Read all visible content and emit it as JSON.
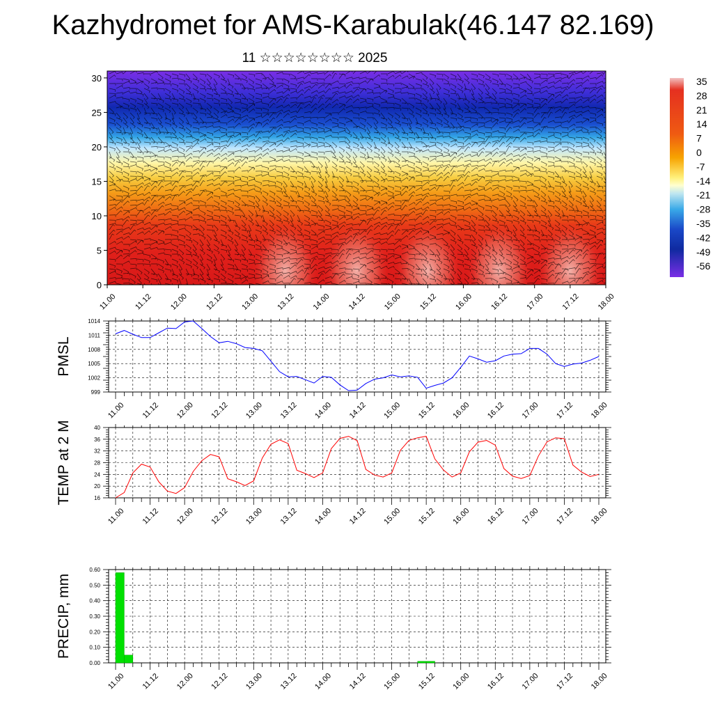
{
  "page": {
    "title": "Kazhydromet for AMS-Karabulak(46.147 82.169)",
    "subtitle": "11 ☆☆☆☆☆☆☆☆ 2025"
  },
  "time_labels": [
    "11.00",
    "11.12",
    "12.00",
    "12.12",
    "13.00",
    "13.12",
    "14.00",
    "14.12",
    "15.00",
    "15.12",
    "16.00",
    "16.12",
    "17.00",
    "17.12",
    "18.00"
  ],
  "colorbar": {
    "labels": [
      "35",
      "28",
      "21",
      "14",
      "7",
      "0",
      "-7",
      "-14",
      "-21",
      "-28",
      "-35",
      "-42",
      "-49",
      "-56"
    ],
    "colors": [
      "#f2b8b8",
      "#e53020",
      "#f7a300",
      "#fff07a",
      "#bfe6f0",
      "#39a9e8",
      "#0f2aa0",
      "#7a2ee6"
    ]
  },
  "chart_data": [
    {
      "type": "heatmap",
      "title": "",
      "description_none": "",
      "x_ticks": [
        "11.00",
        "11.12",
        "12.00",
        "12.12",
        "13.00",
        "13.12",
        "14.00",
        "14.12",
        "15.00",
        "15.12",
        "16.00",
        "16.12",
        "17.00",
        "17.12",
        "18.00"
      ],
      "y_ticks": [
        0,
        5,
        10,
        15,
        20,
        25,
        30
      ],
      "ylim": [
        0,
        31
      ],
      "value_range": [
        -56,
        35
      ],
      "warm_maxima_at_days": [
        13.5,
        14.5,
        15.5,
        16.5,
        17.5
      ],
      "grid": false,
      "legend": "right colorbar"
    },
    {
      "type": "line",
      "ylabel": "PMSL",
      "ylim": [
        999,
        1014
      ],
      "y_ticks": [
        999,
        1002,
        1005,
        1008,
        1011,
        1014
      ],
      "x_ticks": [
        "11.00",
        "11.12",
        "12.00",
        "12.12",
        "13.00",
        "13.12",
        "14.00",
        "14.12",
        "15.00",
        "15.12",
        "16.00",
        "16.12",
        "17.00",
        "17.12",
        "18.00"
      ],
      "x_hours": [
        0,
        3,
        6,
        9,
        12,
        15,
        18,
        21,
        24,
        27,
        30,
        33,
        36,
        39,
        42,
        45,
        48,
        51,
        54,
        57,
        60,
        63,
        66,
        69,
        72,
        75,
        78,
        81,
        84,
        87,
        90,
        93,
        96,
        99,
        102,
        105,
        108,
        111,
        114,
        117,
        120,
        123,
        126,
        129,
        132,
        135,
        138,
        141,
        144,
        147,
        150,
        153,
        156,
        159,
        162,
        165,
        168
      ],
      "series": [
        {
          "color": "#0000ff",
          "values": [
            1011.3,
            1012,
            1011.2,
            1010.5,
            1010.5,
            1011.5,
            1012.5,
            1012.4,
            1013.8,
            1014,
            1012.4,
            1010.7,
            1009.4,
            1009.7,
            1009.2,
            1008.4,
            1008.2,
            1007.7,
            1005.5,
            1003.3,
            1002.2,
            1002.3,
            1001.6,
            1000.9,
            1002.3,
            1002.1,
            1000.5,
            999.3,
            999.4,
            1000.8,
            1001.7,
            1002,
            1002.6,
            1002.2,
            1002.4,
            1002.1,
            999.8,
            1000.4,
            1000.9,
            1002,
            1004.2,
            1006.6,
            1006,
            1005.3,
            1005.6,
            1006.6,
            1007,
            1007.1,
            1008.2,
            1008.2,
            1007,
            1005,
            1004.4,
            1004.9,
            1005.1,
            1005.7,
            1006.5
          ]
        }
      ],
      "grid": true
    },
    {
      "type": "line",
      "ylabel": "TEMP at 2 M",
      "ylim": [
        16,
        40
      ],
      "y_ticks": [
        16,
        20,
        24,
        28,
        32,
        36,
        40
      ],
      "x_ticks": [
        "11.00",
        "11.12",
        "12.00",
        "12.12",
        "13.00",
        "13.12",
        "14.00",
        "14.12",
        "15.00",
        "15.12",
        "16.00",
        "16.12",
        "17.00",
        "17.12",
        "18.00"
      ],
      "x_hours": [
        0,
        3,
        6,
        9,
        12,
        15,
        18,
        21,
        24,
        27,
        30,
        33,
        36,
        39,
        42,
        45,
        48,
        51,
        54,
        57,
        60,
        63,
        66,
        69,
        72,
        75,
        78,
        81,
        84,
        87,
        90,
        93,
        96,
        99,
        102,
        105,
        108,
        111,
        114,
        117,
        120,
        123,
        126,
        129,
        132,
        135,
        138,
        141,
        144,
        147,
        150,
        153,
        156,
        159,
        162,
        165,
        168
      ],
      "series": [
        {
          "color": "#ff0000",
          "values": [
            16,
            17.8,
            24.5,
            27.5,
            26.5,
            21.5,
            18.3,
            17.5,
            19.5,
            25,
            28.7,
            30.8,
            30,
            22.5,
            21.5,
            20.2,
            21.8,
            29.6,
            34.3,
            35.8,
            34.5,
            25.4,
            24.3,
            22.9,
            24.5,
            32.8,
            36.3,
            37,
            35.5,
            25.7,
            23.8,
            23.1,
            24.5,
            32.2,
            35.6,
            36.5,
            37,
            29.3,
            25.5,
            23.1,
            24.5,
            31.7,
            35,
            35.6,
            34,
            26,
            23.4,
            22.6,
            23.6,
            30.3,
            35.1,
            36.5,
            36.2,
            27.2,
            24.8,
            23.3,
            24
          ]
        }
      ],
      "grid": true
    },
    {
      "type": "bar",
      "ylabel": "PRECIP, mm",
      "ylim": [
        0,
        0.6
      ],
      "y_ticks": [
        "0.00",
        "0.10",
        "0.20",
        "0.30",
        "0.40",
        "0.50",
        "0.60"
      ],
      "x_ticks": [
        "11.00",
        "11.12",
        "12.00",
        "12.12",
        "13.00",
        "13.12",
        "14.00",
        "14.12",
        "15.00",
        "15.12",
        "16.00",
        "16.12",
        "17.00",
        "17.12",
        "18.00"
      ],
      "bars": [
        {
          "x_hours": 0,
          "value": 0.58
        },
        {
          "x_hours": 3,
          "value": 0.05
        },
        {
          "x_hours": 105,
          "value": 0.01
        },
        {
          "x_hours": 108,
          "value": 0.01
        }
      ],
      "bar_color": "#00e000",
      "grid": true
    }
  ]
}
